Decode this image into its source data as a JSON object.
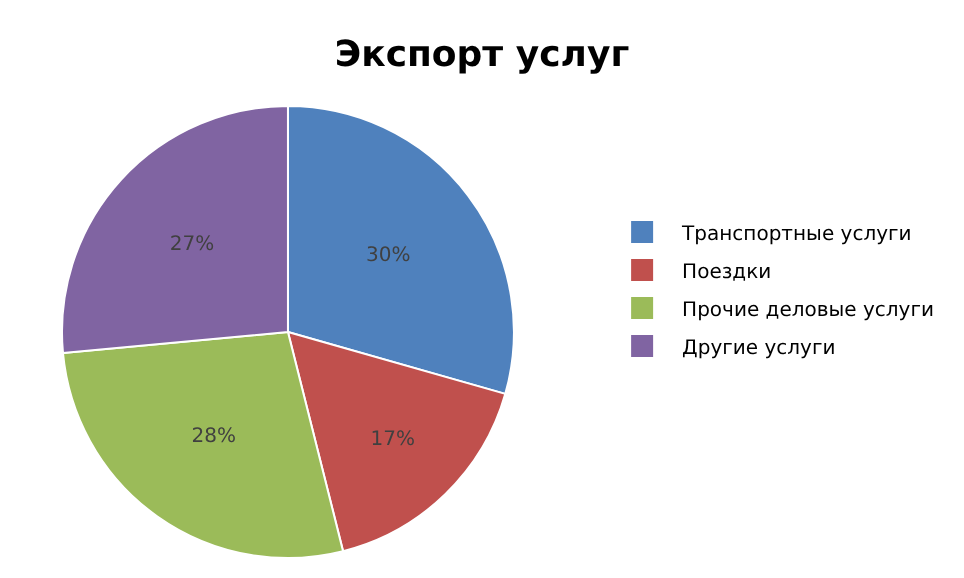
{
  "chart_data": {
    "type": "pie",
    "title": "Экспорт услуг",
    "categories": [
      "Транспортные услуги",
      "Поездки",
      "Прочие деловые услуги",
      "Другие услуги"
    ],
    "values": [
      30,
      17,
      28,
      27
    ],
    "value_labels": [
      "30%",
      "17%",
      "28%",
      "27%"
    ],
    "colors": [
      "#4f81bd",
      "#c0504d",
      "#9bbb59",
      "#8064a2"
    ],
    "legend": "right"
  }
}
